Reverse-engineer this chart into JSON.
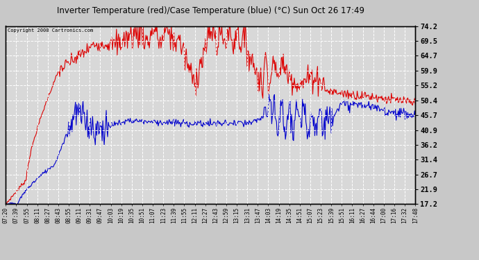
{
  "title": "Inverter Temperature (red)/Case Temperature (blue) (°C) Sun Oct 26 17:49",
  "copyright": "Copyright 2008 Cartronics.com",
  "yticks": [
    17.2,
    21.9,
    26.7,
    31.4,
    36.2,
    40.9,
    45.7,
    50.4,
    55.2,
    59.9,
    64.7,
    69.5,
    74.2
  ],
  "xtick_labels": [
    "07:20",
    "07:39",
    "07:55",
    "08:11",
    "08:27",
    "08:43",
    "08:55",
    "09:11",
    "09:31",
    "09:47",
    "10:03",
    "10:19",
    "10:35",
    "10:51",
    "11:07",
    "11:23",
    "11:39",
    "11:55",
    "12:11",
    "12:27",
    "12:43",
    "12:59",
    "13:15",
    "13:31",
    "13:47",
    "14:03",
    "14:19",
    "14:35",
    "14:51",
    "15:07",
    "15:23",
    "15:39",
    "15:51",
    "16:11",
    "16:27",
    "16:44",
    "17:00",
    "17:16",
    "17:32",
    "17:48"
  ],
  "bg_color": "#c8c8c8",
  "plot_bg_color": "#d8d8d8",
  "grid_color": "#ffffff",
  "red_color": "#dd0000",
  "blue_color": "#0000cc",
  "title_color": "#000000",
  "ymin": 17.2,
  "ymax": 74.2,
  "line_width": 0.8
}
